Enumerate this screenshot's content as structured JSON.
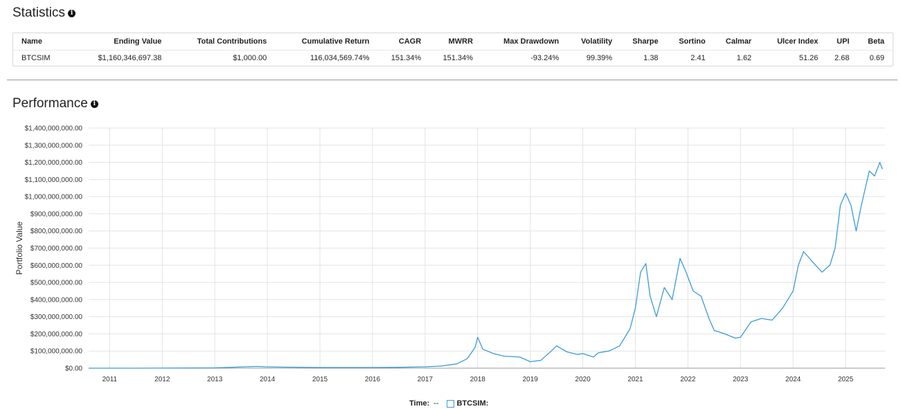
{
  "statistics": {
    "title": "Statistics",
    "info_glyph": "i",
    "columns": [
      "Name",
      "Ending Value",
      "Total Contributions",
      "Cumulative Return",
      "CAGR",
      "MWRR",
      "Max Drawdown",
      "Volatility",
      "Sharpe",
      "Sortino",
      "Calmar",
      "Ulcer Index",
      "UPI",
      "Beta"
    ],
    "rows": [
      [
        "BTCSIM",
        "$1,160,346,697.38",
        "$1,000.00",
        "116,034,569.74%",
        "151.34%",
        "151.34%",
        "-93.24%",
        "99.39%",
        "1.38",
        "2.41",
        "1.62",
        "51.26",
        "2.68",
        "0.69"
      ]
    ]
  },
  "performance": {
    "title": "Performance",
    "info_glyph": "i"
  },
  "legend": {
    "time_label": "Time:",
    "time_value": "--",
    "series_label": "BTCSIM:"
  },
  "chart_data": {
    "type": "line",
    "title": "",
    "xlabel": "",
    "ylabel": "Portfolio Value",
    "xlim": [
      2010.6,
      2025.75
    ],
    "ylim": [
      0,
      1400000000
    ],
    "grid": true,
    "x_ticks": [
      "2011",
      "2012",
      "2013",
      "2014",
      "2015",
      "2016",
      "2017",
      "2018",
      "2019",
      "2020",
      "2021",
      "2022",
      "2023",
      "2024",
      "2025"
    ],
    "y_ticks": [
      "$0.00",
      "$100,000,000.00",
      "$200,000,000.00",
      "$300,000,000.00",
      "$400,000,000.00",
      "$500,000,000.00",
      "$600,000,000.00",
      "$700,000,000.00",
      "$800,000,000.00",
      "$900,000,000.00",
      "$1,000,000,000.00",
      "$1,100,000,000.00",
      "$1,200,000,000.00",
      "$1,300,000,000.00",
      "$1,400,000,000.00"
    ],
    "series": [
      {
        "name": "BTCSIM",
        "color": "#3a9ad9",
        "x": [
          2010.6,
          2011.5,
          2013.0,
          2013.8,
          2013.95,
          2014.3,
          2015.0,
          2016.0,
          2016.5,
          2017.0,
          2017.3,
          2017.6,
          2017.8,
          2017.95,
          2018.0,
          2018.1,
          2018.3,
          2018.5,
          2018.8,
          2019.0,
          2019.2,
          2019.4,
          2019.5,
          2019.7,
          2019.9,
          2020.0,
          2020.2,
          2020.3,
          2020.5,
          2020.7,
          2020.9,
          2021.0,
          2021.1,
          2021.2,
          2021.28,
          2021.4,
          2021.55,
          2021.7,
          2021.85,
          2021.95,
          2022.1,
          2022.25,
          2022.4,
          2022.5,
          2022.7,
          2022.9,
          2023.0,
          2023.2,
          2023.4,
          2023.6,
          2023.8,
          2024.0,
          2024.1,
          2024.2,
          2024.4,
          2024.55,
          2024.7,
          2024.8,
          2024.9,
          2025.0,
          2025.1,
          2025.2,
          2025.3,
          2025.45,
          2025.55,
          2025.65,
          2025.7
        ],
        "y": [
          0,
          200000,
          2000000,
          10000000,
          8000000,
          6000000,
          4000000,
          4000000,
          5000000,
          8000000,
          12000000,
          25000000,
          55000000,
          120000000,
          180000000,
          110000000,
          85000000,
          70000000,
          65000000,
          38000000,
          45000000,
          100000000,
          130000000,
          95000000,
          80000000,
          85000000,
          65000000,
          90000000,
          100000000,
          130000000,
          230000000,
          350000000,
          560000000,
          610000000,
          420000000,
          300000000,
          470000000,
          400000000,
          640000000,
          570000000,
          450000000,
          420000000,
          290000000,
          220000000,
          200000000,
          175000000,
          180000000,
          270000000,
          290000000,
          280000000,
          350000000,
          450000000,
          600000000,
          680000000,
          610000000,
          560000000,
          600000000,
          700000000,
          950000000,
          1020000000,
          950000000,
          800000000,
          950000000,
          1150000000,
          1120000000,
          1200000000,
          1160000000
        ]
      }
    ]
  }
}
